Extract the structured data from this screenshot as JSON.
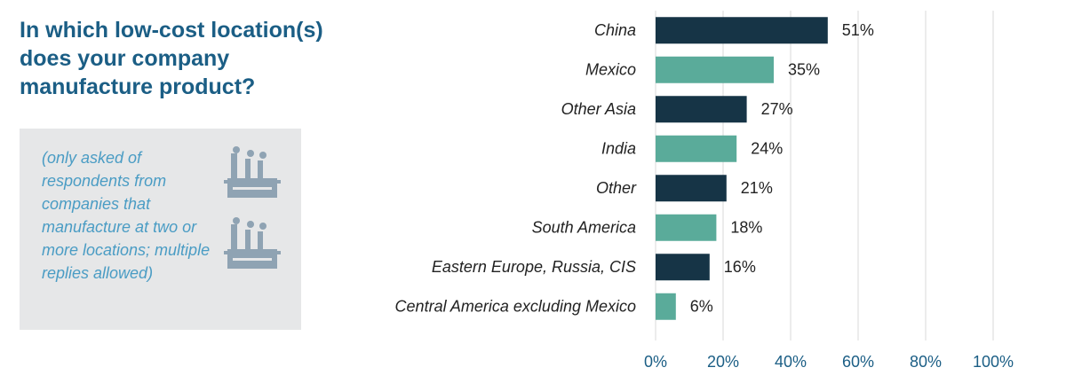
{
  "chart_data": {
    "type": "bar",
    "orientation": "horizontal",
    "title": "In which low-cost location(s) does your company manufacture product?",
    "note": "(only asked of respondents from companies that manufacture at two or more locations; multiple replies allowed)",
    "categories": [
      "China",
      "Mexico",
      "Other Asia",
      "India",
      "Other",
      "South America",
      "Eastern Europe, Russia, CIS",
      "Central America excluding Mexico"
    ],
    "values": [
      51,
      35,
      27,
      24,
      21,
      18,
      16,
      6
    ],
    "value_labels": [
      "51%",
      "35%",
      "27%",
      "24%",
      "21%",
      "18%",
      "16%",
      "6%"
    ],
    "colors": [
      "#163446",
      "#5aab9a",
      "#163446",
      "#5aab9a",
      "#163446",
      "#5aab9a",
      "#163446",
      "#5aab9a"
    ],
    "xlim": [
      0,
      100
    ],
    "xticks": [
      {
        "value": 0,
        "label": "0%"
      },
      {
        "value": 20,
        "label": "20%"
      },
      {
        "value": 40,
        "label": "40%"
      },
      {
        "value": 60,
        "label": "60%"
      },
      {
        "value": 80,
        "label": "80%"
      },
      {
        "value": 100,
        "label": "100%"
      }
    ],
    "grid": true
  }
}
